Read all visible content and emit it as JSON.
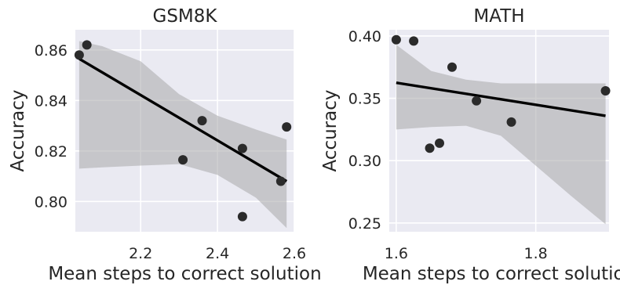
{
  "chart_data": [
    {
      "type": "scatter",
      "title": "GSM8K",
      "xlabel": "Mean steps to correct solution",
      "ylabel": "Accuracy",
      "xlim": [
        2.03,
        2.6
      ],
      "ylim": [
        0.788,
        0.868
      ],
      "xticks": [
        2.2,
        2.4,
        2.6
      ],
      "xtick_labels": [
        "2.2",
        "2.4",
        "2.6"
      ],
      "yticks": [
        0.8,
        0.82,
        0.84,
        0.86
      ],
      "ytick_labels": [
        "0.80",
        "0.82",
        "0.84",
        "0.86"
      ],
      "grid": true,
      "points": [
        {
          "x": 2.04,
          "y": 0.858
        },
        {
          "x": 2.06,
          "y": 0.862
        },
        {
          "x": 2.31,
          "y": 0.8165
        },
        {
          "x": 2.36,
          "y": 0.832
        },
        {
          "x": 2.465,
          "y": 0.821
        },
        {
          "x": 2.465,
          "y": 0.794
        },
        {
          "x": 2.565,
          "y": 0.808
        },
        {
          "x": 2.58,
          "y": 0.8295
        }
      ],
      "regression_line": {
        "x": [
          2.04,
          2.58
        ],
        "y": [
          0.8565,
          0.808
        ]
      },
      "confidence_band": {
        "x": [
          2.04,
          2.1,
          2.2,
          2.3,
          2.4,
          2.5,
          2.58
        ],
        "upper": [
          0.8635,
          0.8615,
          0.8555,
          0.8425,
          0.834,
          0.8285,
          0.8245
        ],
        "lower": [
          0.813,
          0.8135,
          0.8142,
          0.8148,
          0.8105,
          0.8015,
          0.7895
        ]
      }
    },
    {
      "type": "scatter",
      "title": "MATH",
      "xlabel": "Mean steps to correct solution",
      "ylabel": "Accuracy",
      "xlim": [
        1.59,
        1.905
      ],
      "ylim": [
        0.243,
        0.405
      ],
      "xticks": [
        1.6,
        1.8
      ],
      "xtick_labels": [
        "1.6",
        "1.8"
      ],
      "yticks": [
        0.25,
        0.3,
        0.35,
        0.4
      ],
      "ytick_labels": [
        "0.25",
        "0.30",
        "0.35",
        "0.40"
      ],
      "grid": true,
      "points": [
        {
          "x": 1.6,
          "y": 0.397
        },
        {
          "x": 1.625,
          "y": 0.396
        },
        {
          "x": 1.648,
          "y": 0.31
        },
        {
          "x": 1.662,
          "y": 0.314
        },
        {
          "x": 1.68,
          "y": 0.375
        },
        {
          "x": 1.715,
          "y": 0.348
        },
        {
          "x": 1.765,
          "y": 0.331
        },
        {
          "x": 1.9,
          "y": 0.356
        }
      ],
      "regression_line": {
        "x": [
          1.6,
          1.9
        ],
        "y": [
          0.3625,
          0.336
        ]
      },
      "confidence_band": {
        "x": [
          1.6,
          1.65,
          1.7,
          1.75,
          1.8,
          1.85,
          1.9
        ],
        "upper": [
          0.393,
          0.372,
          0.365,
          0.362,
          0.362,
          0.362,
          0.362
        ],
        "lower": [
          0.325,
          0.327,
          0.328,
          0.32,
          0.296,
          0.272,
          0.249
        ]
      }
    }
  ],
  "colors": {
    "plot_background": "#eaeaf2",
    "grid": "#ffffff",
    "points": "#2b2b2b",
    "regression_line": "#000000",
    "confidence_band": "#a8a8aa",
    "text": "#262626"
  }
}
